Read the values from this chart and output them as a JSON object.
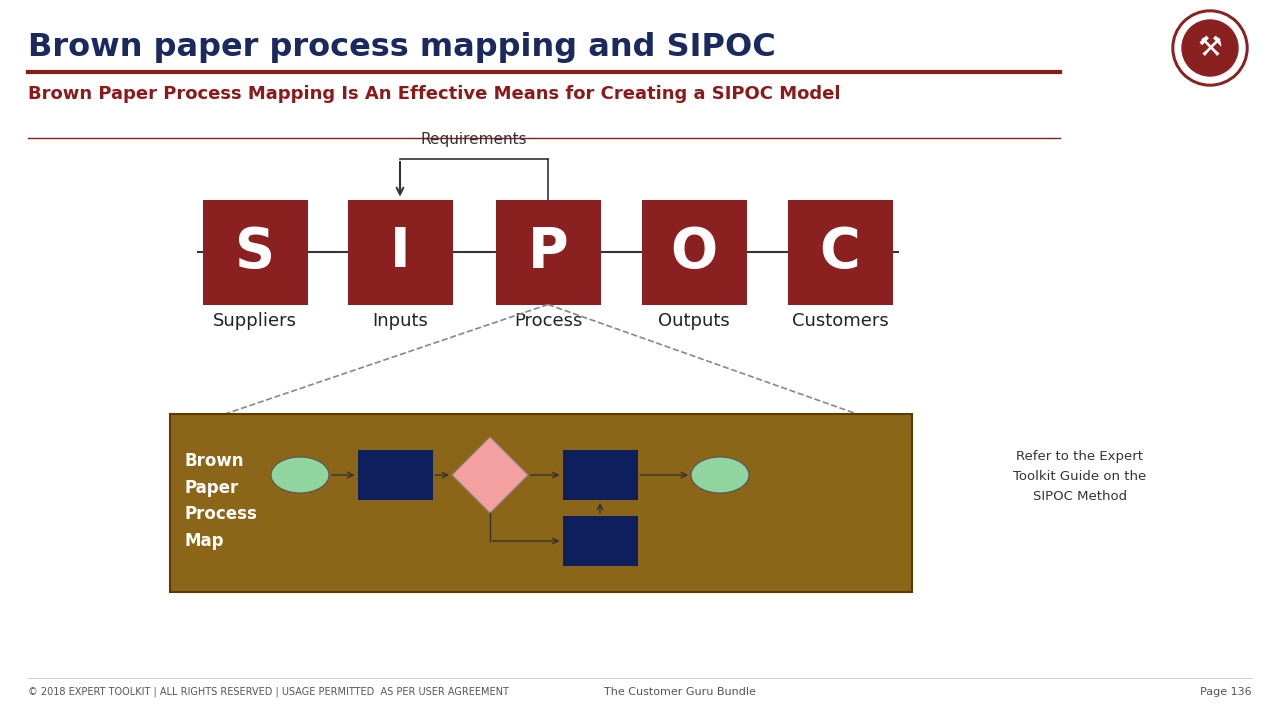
{
  "title": "Brown paper process mapping and SIPOC",
  "subtitle": "Brown Paper Process Mapping Is An Effective Means for Creating a SIPOC Model",
  "title_color": "#1a2a5e",
  "subtitle_color": "#8b1a1a",
  "bg_color": "#ffffff",
  "sipoc_box_color": "#8b2020",
  "sipoc_letters": [
    "S",
    "I",
    "P",
    "O",
    "C"
  ],
  "sipoc_labels": [
    "Suppliers",
    "Inputs",
    "Process",
    "Outputs",
    "Customers"
  ],
  "brown_bg": "#8B6518",
  "dark_blue": "#0d1f5c",
  "light_green": "#90d4a0",
  "pink_diamond": "#f4a0a0",
  "footer_left": "© 2018 EXPERT TOOLKIT | ALL RIGHTS RESERVED | USAGE PERMITTED  AS PER USER AGREEMENT",
  "footer_center": "The Customer Guru Bundle",
  "footer_right": "Page 136",
  "refer_text": "Refer to the Expert\nToolkit Guide on the\nSIPOC Method",
  "brown_paper_label": "Brown\nPaper\nProcess\nMap",
  "requirements_text": "Requirements",
  "line_color": "#8b1a1a"
}
